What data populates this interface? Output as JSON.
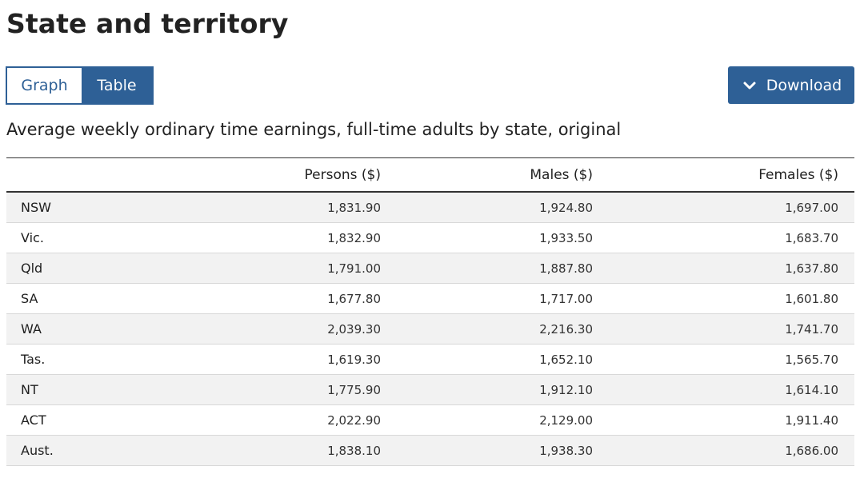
{
  "page_title": "State and territory",
  "view_toggle": {
    "graph_label": "Graph",
    "table_label": "Table",
    "active": "Table"
  },
  "download": {
    "label": "Download",
    "icon": "chevron-down-icon"
  },
  "table_caption": "Average weekly ordinary time earnings, full-time adults by state, original",
  "colors": {
    "accent": "#2e6096",
    "stripe": "#f2f2f2"
  },
  "table": {
    "columns": [
      "",
      "Persons ($)",
      "Males ($)",
      "Females ($)"
    ],
    "rows": [
      [
        "NSW",
        "1,831.90",
        "1,924.80",
        "1,697.00"
      ],
      [
        "Vic.",
        "1,832.90",
        "1,933.50",
        "1,683.70"
      ],
      [
        "Qld",
        "1,791.00",
        "1,887.80",
        "1,637.80"
      ],
      [
        "SA",
        "1,677.80",
        "1,717.00",
        "1,601.80"
      ],
      [
        "WA",
        "2,039.30",
        "2,216.30",
        "1,741.70"
      ],
      [
        "Tas.",
        "1,619.30",
        "1,652.10",
        "1,565.70"
      ],
      [
        "NT",
        "1,775.90",
        "1,912.10",
        "1,614.10"
      ],
      [
        "ACT",
        "2,022.90",
        "2,129.00",
        "1,911.40"
      ],
      [
        "Aust.",
        "1,838.10",
        "1,938.30",
        "1,686.00"
      ]
    ]
  }
}
